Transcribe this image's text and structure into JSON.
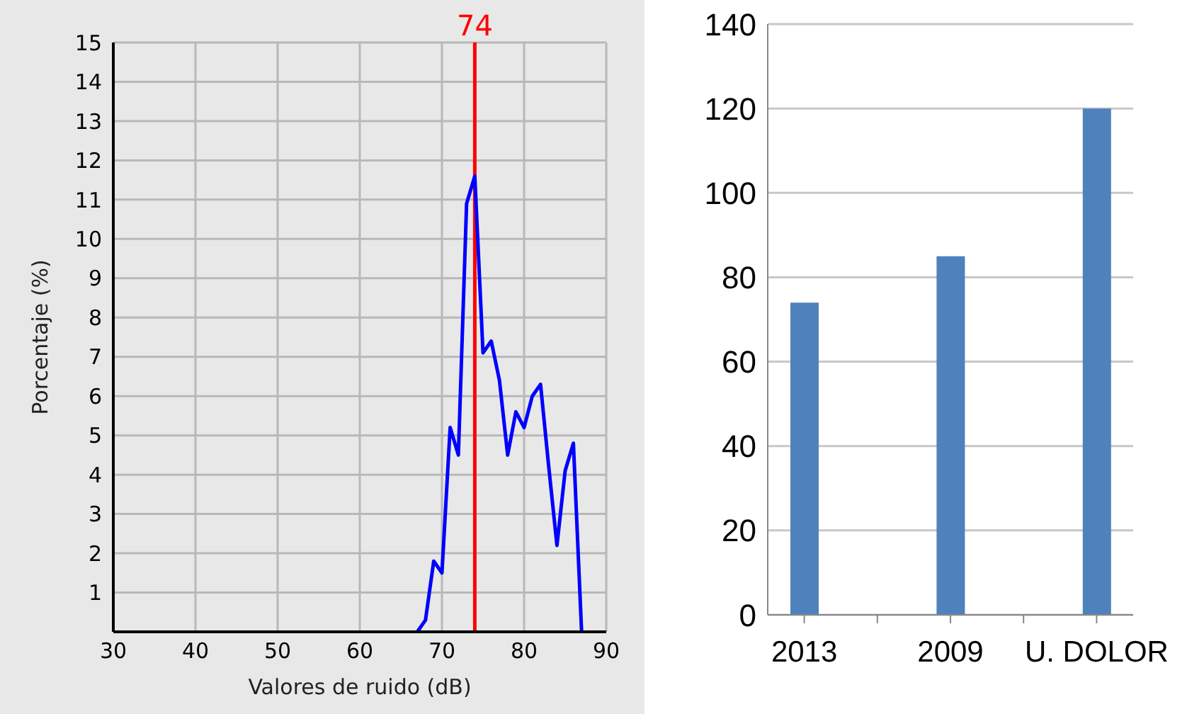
{
  "chart_data": [
    {
      "type": "line",
      "xlabel": "Valores de ruido (dB)",
      "ylabel": "Porcentaje (%)",
      "x": [
        67,
        68,
        69,
        70,
        71,
        72,
        73,
        74,
        75,
        76,
        77,
        78,
        79,
        80,
        81,
        82,
        83,
        84,
        85,
        86,
        87
      ],
      "series": [
        {
          "color": "#0000ff",
          "values": [
            0,
            0.3,
            1.8,
            1.5,
            5.2,
            4.5,
            10.9,
            11.6,
            7.1,
            7.4,
            6.4,
            4.5,
            5.6,
            5.2,
            6,
            6.3,
            4.2,
            2.2,
            4.1,
            4.8,
            0
          ]
        }
      ],
      "xlim": [
        30,
        90
      ],
      "xticks": [
        30,
        40,
        50,
        60,
        70,
        80,
        90
      ],
      "ylim": [
        0,
        15
      ],
      "yticks": [
        1,
        2,
        3,
        4,
        5,
        6,
        7,
        8,
        9,
        10,
        11,
        12,
        13,
        14,
        15
      ],
      "grid": true,
      "ref_lines": [
        {
          "axis": "x",
          "value": 74,
          "label": "74",
          "color": "#ff0000"
        }
      ]
    },
    {
      "type": "bar",
      "categories": [
        "2013",
        null,
        "2009",
        null,
        "U. DOLOR"
      ],
      "values": [
        74,
        null,
        85,
        null,
        120
      ],
      "color": "#4f81bd",
      "ylim": [
        0,
        140
      ],
      "yticks": [
        0,
        20,
        40,
        60,
        80,
        100,
        120,
        140
      ],
      "grid": "y"
    }
  ]
}
